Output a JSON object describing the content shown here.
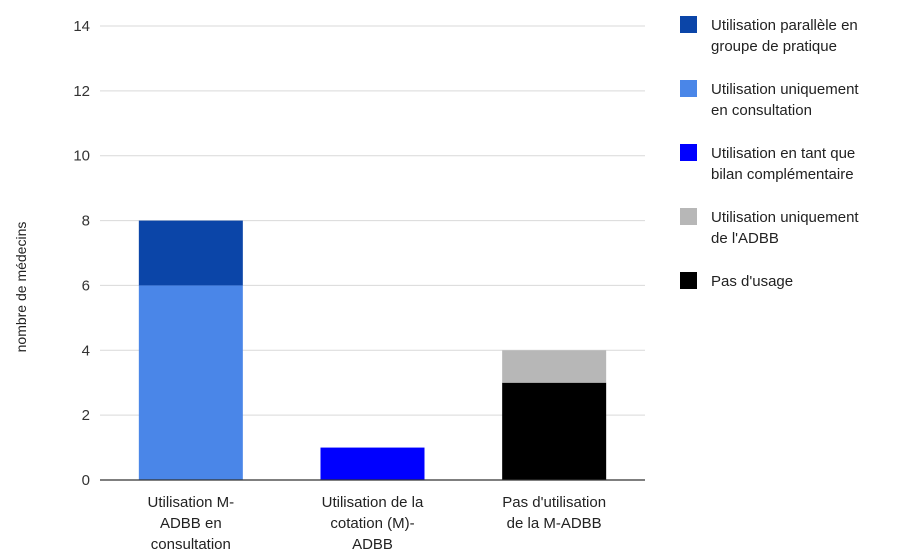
{
  "chart_data": {
    "type": "bar",
    "stacked": true,
    "title": "",
    "xlabel": "",
    "ylabel": "nombre de médecins",
    "ylim": [
      0,
      14
    ],
    "yticks": [
      0,
      2,
      4,
      6,
      8,
      10,
      12,
      14
    ],
    "grid": true,
    "legend_position": "right",
    "categories": [
      [
        "Utilisation M-",
        "ADBB en",
        "consultation"
      ],
      [
        "Utilisation de la",
        "cotation (M)-",
        "ADBB"
      ],
      [
        "Pas d'utilisation",
        "de la M-ADBB"
      ]
    ],
    "series": [
      {
        "name": [
          "Pas d'usage"
        ],
        "color": "#000000",
        "values": [
          0,
          0,
          3
        ]
      },
      {
        "name": [
          "Utilisation uniquement",
          "de l'ADBB"
        ],
        "color": "#b7b7b7",
        "values": [
          0,
          0,
          1
        ]
      },
      {
        "name": [
          "Utilisation en tant que",
          "bilan complémentaire"
        ],
        "color": "#0000ff",
        "values": [
          0,
          1,
          0
        ]
      },
      {
        "name": [
          "Utilisation uniquement",
          "en consultation"
        ],
        "color": "#4a86e8",
        "values": [
          6,
          0,
          0
        ]
      },
      {
        "name": [
          "Utilisation parallèle en",
          "groupe de pratique"
        ],
        "color": "#0b45a8",
        "values": [
          2,
          0,
          0
        ]
      }
    ],
    "legend_order": [
      4,
      3,
      2,
      1,
      0
    ]
  }
}
